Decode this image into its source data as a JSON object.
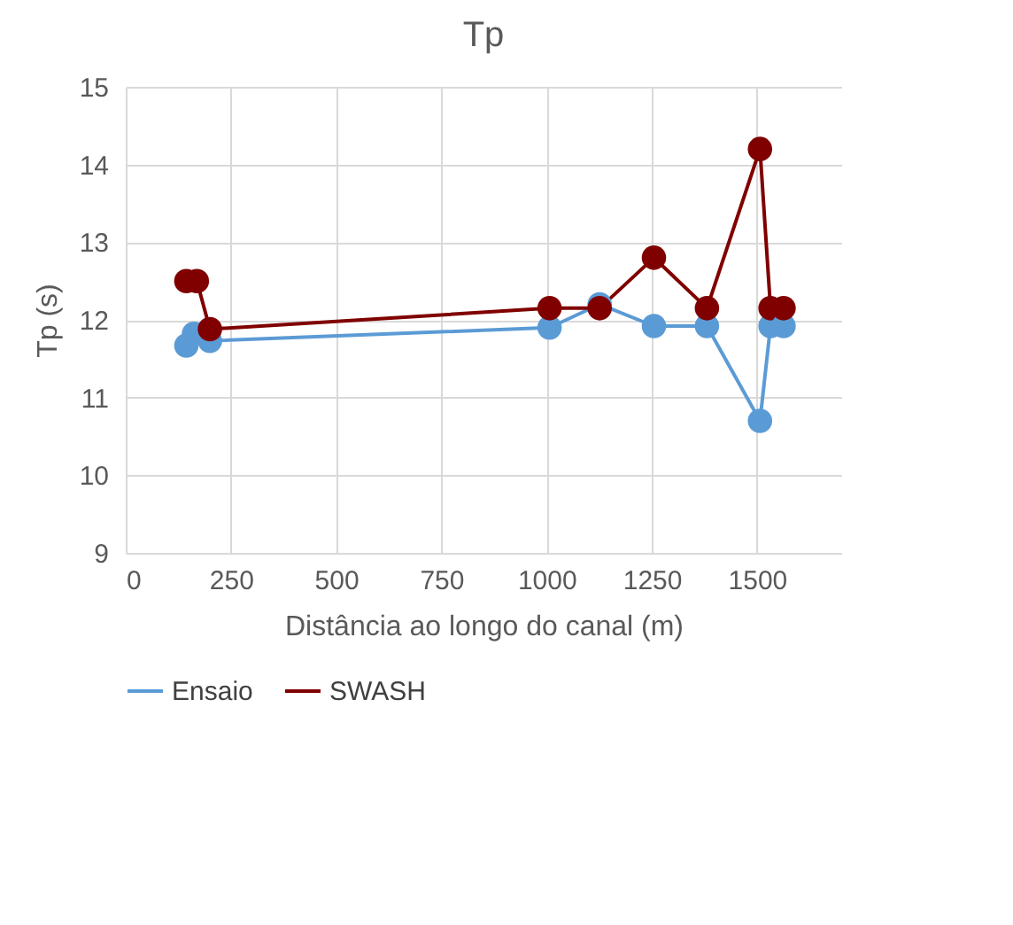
{
  "chart_data": {
    "type": "line",
    "title": "Tp",
    "xlabel": "Distância ao longo do canal (m)",
    "ylabel": "Tp (s)",
    "xlim": [
      0,
      1700
    ],
    "xticks": [
      0,
      250,
      500,
      750,
      1000,
      1250,
      1500
    ],
    "ylim": [
      9,
      15
    ],
    "yticks": [
      9,
      10,
      11,
      12,
      13,
      14,
      15
    ],
    "grid": true,
    "legend": "bottom",
    "marker": "circle",
    "line_style": "solid",
    "series": [
      {
        "name": "Ensaio",
        "color": "#5b9bd5",
        "x": [
          144,
          162,
          200,
          1007,
          1126,
          1255,
          1381,
          1507,
          1532,
          1563
        ],
        "values": [
          11.67,
          11.82,
          11.73,
          11.9,
          12.2,
          11.92,
          11.92,
          10.7,
          11.92,
          11.92
        ]
      },
      {
        "name": "SWASH",
        "color": "#800000",
        "x": [
          144,
          169,
          200,
          1007,
          1126,
          1255,
          1381,
          1507,
          1532,
          1563
        ],
        "values": [
          12.5,
          12.5,
          11.88,
          12.15,
          12.15,
          12.8,
          12.15,
          14.2,
          12.15,
          12.15
        ]
      }
    ]
  }
}
